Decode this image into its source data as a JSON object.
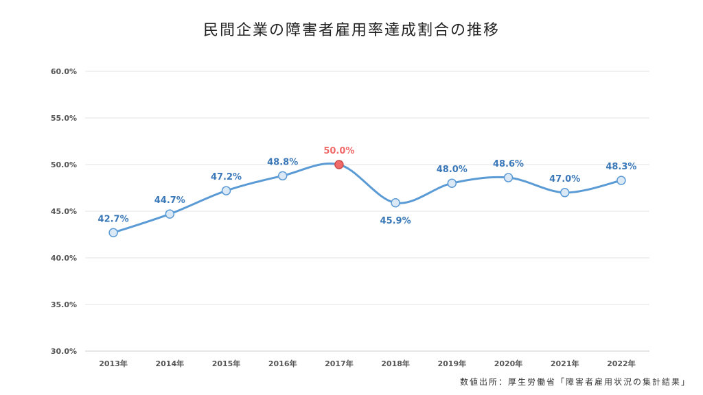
{
  "chart_data": {
    "type": "line",
    "title": "民間企業の障害者雇用率達成割合の推移",
    "source": "数値出所：厚生労働省「障害者雇用状況の集計結果」",
    "categories": [
      "2013年",
      "2014年",
      "2015年",
      "2016年",
      "2017年",
      "2018年",
      "2019年",
      "2020年",
      "2021年",
      "2022年"
    ],
    "values": [
      42.7,
      44.7,
      47.2,
      48.8,
      50.0,
      45.9,
      48.0,
      48.6,
      47.0,
      48.3
    ],
    "data_labels": [
      "42.7%",
      "44.7%",
      "47.2%",
      "48.8%",
      "50.0%",
      "45.9%",
      "48.0%",
      "48.6%",
      "47.0%",
      "48.3%"
    ],
    "y_ticks": [
      "30.0%",
      "35.0%",
      "40.0%",
      "45.0%",
      "50.0%",
      "55.0%",
      "60.0%"
    ],
    "ylim": [
      30,
      60
    ],
    "highlight_index": 4,
    "grid": true,
    "colors": {
      "line": "#5b9bd5",
      "marker_fill": "#dbe8f5",
      "label": "#3a78b8",
      "highlight": "#f06a6a",
      "grid": "#e3e3e3"
    }
  }
}
